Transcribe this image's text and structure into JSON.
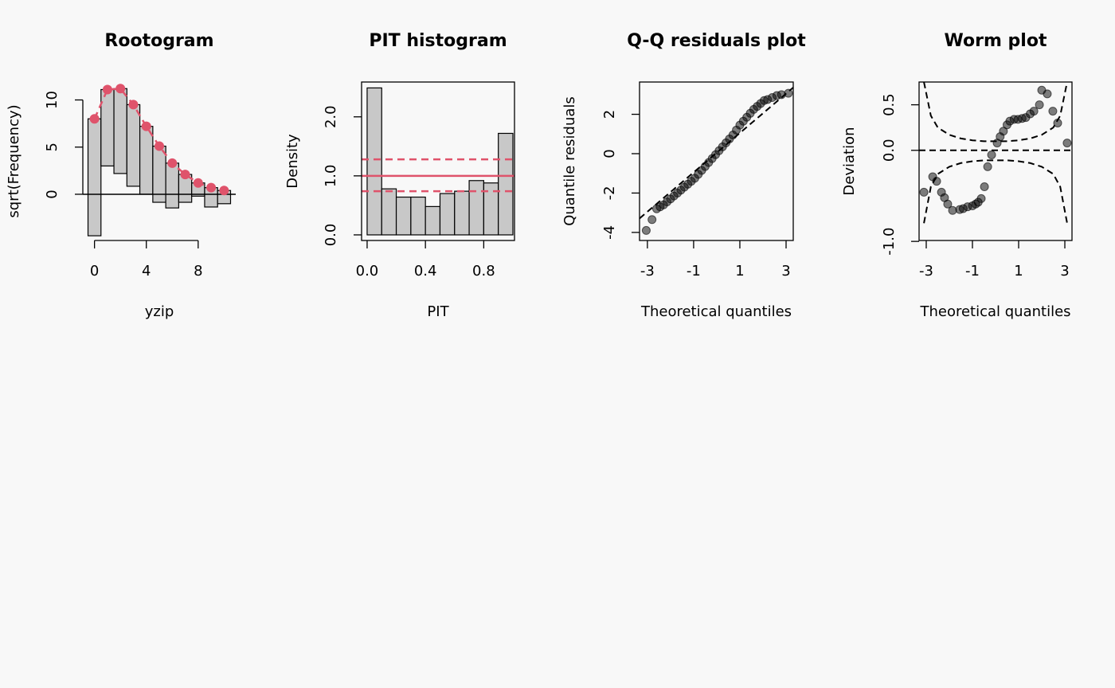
{
  "chart_data": [
    {
      "type": "rootogram",
      "title": "Rootogram",
      "xlabel": "yzip",
      "ylabel": "sqrt(Frequency)",
      "x": [
        0,
        1,
        2,
        3,
        4,
        5,
        6,
        7,
        8,
        9,
        10
      ],
      "observed": [
        12.4,
        8.1,
        9.0,
        8.65,
        7.2,
        5.95,
        4.75,
        2.95,
        1.4,
        2.05,
        1.4
      ],
      "expected": [
        8.0,
        11.1,
        11.2,
        9.5,
        7.2,
        5.1,
        3.3,
        2.1,
        1.2,
        0.7,
        0.4
      ],
      "bar_color": "#c8c8c8",
      "line_color": "#DF536B",
      "xlim": [
        -0.9,
        10.9
      ],
      "ylim": [
        -4.9,
        11.9
      ],
      "xticks": [
        0,
        4,
        8
      ],
      "yticks": [
        0,
        5,
        10
      ]
    },
    {
      "type": "histogram",
      "title": "PIT histogram",
      "xlabel": "PIT",
      "ylabel": "Density",
      "bins": [
        0,
        0.1,
        0.2,
        0.3,
        0.4,
        0.5,
        0.6,
        0.7,
        0.8,
        0.9,
        1.0
      ],
      "values": [
        2.49,
        0.78,
        0.64,
        0.64,
        0.48,
        0.7,
        0.74,
        0.92,
        0.88,
        1.72
      ],
      "bar_color": "#c8c8c8",
      "line_color": "#DF536B",
      "reference_line": 1,
      "ci": [
        0.74,
        1.28
      ],
      "xlim": [
        -0.038,
        1.011
      ],
      "ylim": [
        -0.095,
        2.59
      ],
      "xticks": [
        {
          "value": 0,
          "label": "0.0"
        },
        0.4,
        0.8
      ],
      "yticks": [
        {
          "value": 0,
          "label": "0.0"
        },
        {
          "value": 1,
          "label": "1.0"
        },
        {
          "value": 2,
          "label": "2.0"
        }
      ]
    },
    {
      "type": "qq",
      "title": "Q-Q residuals plot",
      "xlabel": "Theoretical quantiles",
      "ylabel": "Quantile residuals",
      "x": [
        -3.05,
        -2.8,
        -2.6,
        -2.45,
        -2.3,
        -2.15,
        -2.0,
        -1.85,
        -1.7,
        -1.55,
        -1.4,
        -1.25,
        -1.1,
        -0.95,
        -0.8,
        -0.65,
        -0.5,
        -0.35,
        -0.2,
        -0.05,
        0.1,
        0.25,
        0.4,
        0.55,
        0.7,
        0.85,
        1.0,
        1.15,
        1.3,
        1.45,
        1.6,
        1.75,
        1.9,
        2.05,
        2.2,
        2.4,
        2.6,
        2.8,
        3.1
      ],
      "values": [
        -3.9,
        -3.35,
        -2.8,
        -2.7,
        -2.6,
        -2.45,
        -2.3,
        -2.15,
        -2.0,
        -1.85,
        -1.7,
        -1.55,
        -1.4,
        -1.25,
        -1.05,
        -0.85,
        -0.65,
        -0.45,
        -0.25,
        -0.05,
        0.15,
        0.35,
        0.55,
        0.75,
        0.95,
        1.2,
        1.45,
        1.65,
        1.85,
        2.05,
        2.25,
        2.4,
        2.55,
        2.7,
        2.75,
        2.85,
        2.95,
        3.0,
        3.07
      ],
      "reference_line": {
        "intercept": 0.05,
        "slope": 1.0
      },
      "xlim": [
        -3.34,
        3.31
      ],
      "ylim": [
        -4.41,
        3.64
      ],
      "xticks": [
        -3,
        -1,
        1,
        3
      ],
      "yticks": [
        -4,
        -2,
        0,
        2
      ]
    },
    {
      "type": "worm",
      "title": "Worm plot",
      "xlabel": "Theoretical quantiles",
      "ylabel": "Deviation",
      "x": [
        -3.1,
        -2.72,
        -2.55,
        -2.34,
        -2.21,
        -2.07,
        -1.86,
        -1.55,
        -1.4,
        -1.21,
        -1.0,
        -0.86,
        -0.75,
        -0.62,
        -0.48,
        -0.34,
        -0.17,
        0.07,
        0.2,
        0.34,
        0.5,
        0.62,
        0.8,
        0.97,
        1.15,
        1.31,
        1.5,
        1.66,
        1.9,
        2.0,
        2.24,
        2.48,
        2.69,
        3.1
      ],
      "values": [
        -0.46,
        -0.29,
        -0.34,
        -0.46,
        -0.52,
        -0.59,
        -0.66,
        -0.65,
        -0.64,
        -0.62,
        -0.61,
        -0.59,
        -0.57,
        -0.53,
        -0.4,
        -0.18,
        -0.05,
        0.08,
        0.15,
        0.21,
        0.28,
        0.32,
        0.34,
        0.34,
        0.35,
        0.36,
        0.4,
        0.43,
        0.5,
        0.66,
        0.62,
        0.43,
        0.3,
        0.08
      ],
      "reference_line": 0,
      "ci": {
        "x": [
          -3.1,
          -2.8,
          -2.5,
          -2.0,
          -1.5,
          -1.0,
          -0.5,
          0,
          0.5,
          1.0,
          1.5,
          2.0,
          2.5,
          2.8,
          3.1
        ],
        "upper": [
          0.75,
          0.38,
          0.25,
          0.17,
          0.13,
          0.11,
          0.1,
          0.1,
          0.1,
          0.11,
          0.13,
          0.17,
          0.25,
          0.38,
          0.75
        ],
        "lower": [
          -0.8,
          -0.4,
          -0.26,
          -0.18,
          -0.14,
          -0.12,
          -0.11,
          -0.11,
          -0.11,
          -0.12,
          -0.14,
          -0.18,
          -0.26,
          -0.4,
          -0.8
        ]
      },
      "xlim": [
        -3.31,
        3.31
      ],
      "ylim": [
        -0.99,
        0.75
      ],
      "xticks": [
        -3,
        -1,
        1,
        3
      ],
      "yticks": [
        {
          "value": -1,
          "label": "-1.0"
        },
        {
          "value": 0,
          "label": "0.0"
        },
        0.5
      ]
    }
  ]
}
